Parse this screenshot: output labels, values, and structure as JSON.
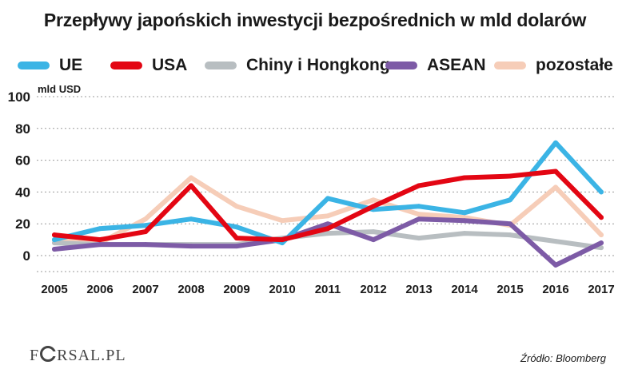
{
  "chart_data": {
    "type": "line",
    "title": "Przepływy japońskich inwestycji bezpośrednich w mld dolarów",
    "ylabel": "mld USD",
    "xlabel": "",
    "categories": [
      "2005",
      "2006",
      "2007",
      "2008",
      "2009",
      "2010",
      "2011",
      "2012",
      "2013",
      "2014",
      "2015",
      "2016",
      "2017"
    ],
    "ylim": [
      -10,
      100
    ],
    "yticks": [
      "100",
      "80",
      "60",
      "40",
      "20",
      "0"
    ],
    "yticks_values": [
      100,
      80,
      60,
      40,
      20,
      0
    ],
    "grid": "horizontal dashed",
    "legend_position": "top",
    "series": [
      {
        "name": "UE",
        "color": "#3bb4e5",
        "values": [
          10,
          17,
          19,
          23,
          18,
          8,
          36,
          29,
          31,
          27,
          35,
          71,
          40
        ]
      },
      {
        "name": "USA",
        "color": "#e30613",
        "values": [
          13,
          10,
          15,
          44,
          11,
          10,
          17,
          31,
          44,
          49,
          50,
          53,
          24
        ]
      },
      {
        "name": "Chiny i Hongkong",
        "color": "#b8bec1",
        "values": [
          8,
          7,
          7,
          7,
          7,
          11,
          14,
          15,
          11,
          14,
          13,
          9,
          5
        ]
      },
      {
        "name": "ASEAN",
        "color": "#7d5ba6",
        "values": [
          4,
          7,
          7,
          6,
          6,
          10,
          20,
          10,
          23,
          22,
          20,
          -6,
          8
        ]
      },
      {
        "name": "pozostałe",
        "color": "#f6cdb8",
        "values": [
          10,
          8,
          23,
          49,
          31,
          22,
          25,
          35,
          26,
          24,
          19,
          43,
          13
        ]
      }
    ]
  },
  "footer": {
    "logo_text": "FORSAL.PL",
    "logo_prefix": "F",
    "logo_suffix": "RSAL.PL",
    "source": "Źródło: Bloomberg"
  }
}
